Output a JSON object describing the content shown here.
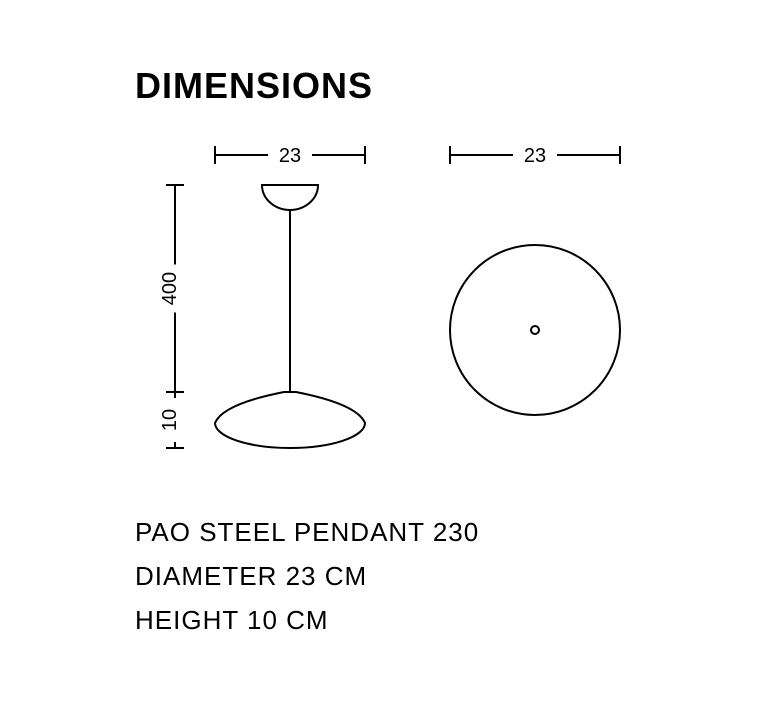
{
  "title": "DIMENSIONS",
  "diagram": {
    "stroke": "#000000",
    "stroke_width": 2,
    "font_family": "Helvetica, Arial, sans-serif",
    "label_fontsize": 20,
    "side_view": {
      "width_label": "23",
      "cord_label": "400",
      "shade_height_label": "10"
    },
    "top_view": {
      "width_label": "23"
    }
  },
  "specs": {
    "line1": "PAO STEEL PENDANT 230",
    "line2": "DIAMETER 23 CM",
    "line3": "HEIGHT 10 CM"
  }
}
